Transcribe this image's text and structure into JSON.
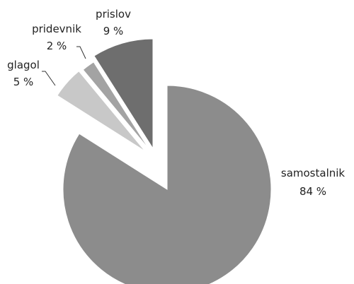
{
  "chart_data": {
    "type": "pie",
    "title": "",
    "slices": [
      {
        "label": "samostalnik",
        "value": 84,
        "display": "84 %",
        "color": "#8c8c8c"
      },
      {
        "label": "glagol",
        "value": 5,
        "display": "5 %",
        "color": "#c8c8c8"
      },
      {
        "label": "pridevnik",
        "value": 2,
        "display": "2 %",
        "color": "#a3a3a3"
      },
      {
        "label": "prislov",
        "value": 9,
        "display": "9 %",
        "color": "#6e6e6e"
      }
    ],
    "exploded": true,
    "legend": "none"
  }
}
